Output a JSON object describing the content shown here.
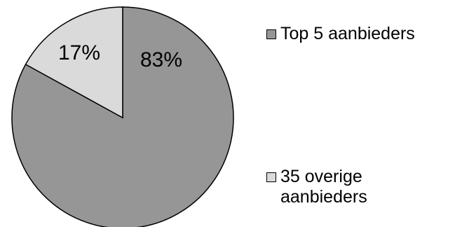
{
  "chart_data": {
    "type": "pie",
    "slices": [
      {
        "label": "Top 5 aanbieders",
        "value": 83,
        "display": "83%",
        "color": "#969696"
      },
      {
        "label": "35 overige\naanbieders",
        "value": 17,
        "display": "17%",
        "color": "#dadada"
      }
    ],
    "start_angle": "12 o'clock",
    "direction": "clockwise",
    "legend_position": "right",
    "title": "",
    "outline_color": "#000000"
  }
}
